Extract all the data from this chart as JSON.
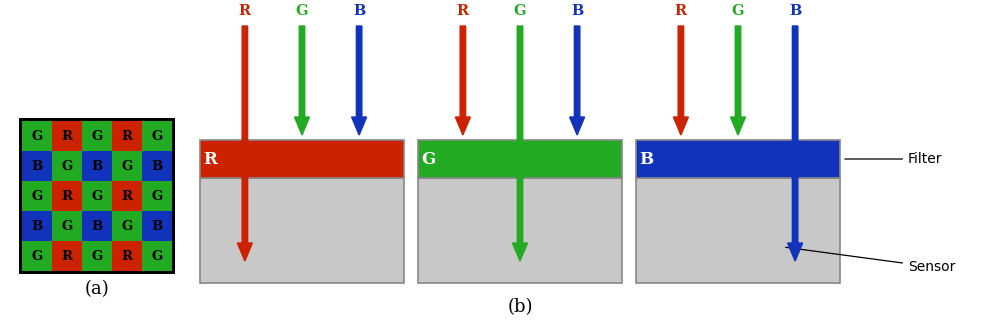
{
  "fig_width": 9.81,
  "fig_height": 3.21,
  "dpi": 100,
  "background_color": "#ffffff",
  "grid_pattern": [
    [
      "G",
      "R",
      "G",
      "R",
      "G"
    ],
    [
      "B",
      "G",
      "B",
      "G",
      "B"
    ],
    [
      "G",
      "R",
      "G",
      "R",
      "G"
    ],
    [
      "B",
      "G",
      "B",
      "G",
      "B"
    ],
    [
      "G",
      "R",
      "G",
      "R",
      "G"
    ]
  ],
  "cell_colors": {
    "R": "#cc2200",
    "G": "#22aa22",
    "B": "#1133bb"
  },
  "label_a": "(a)",
  "label_b": "(b)",
  "filter_label": "Filter",
  "sensor_label": "Sensor",
  "filters": [
    {
      "color": "#cc2200",
      "letter": "R"
    },
    {
      "color": "#22aa22",
      "letter": "G"
    },
    {
      "color": "#1133bb",
      "letter": "B"
    }
  ],
  "sensor_color": "#c8c8c8",
  "sensor_border": "#888888",
  "arrow_colors": [
    "#cc2200",
    "#22aa22",
    "#1133bb"
  ],
  "rgb_labels": [
    "R",
    "G",
    "B"
  ]
}
